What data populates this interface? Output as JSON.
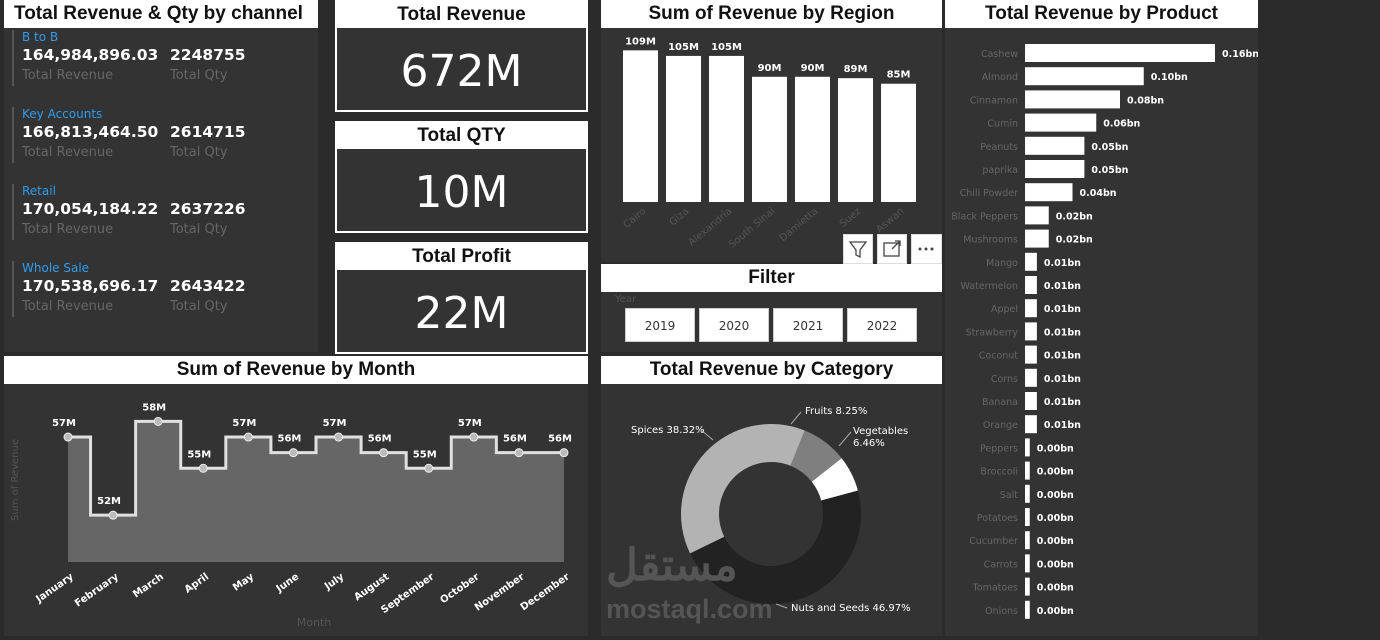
{
  "channel_panel": {
    "title": "Total Revenue & Qty by channel",
    "revenue_label": "Total Revenue",
    "qty_label": "Total Qty",
    "items": [
      {
        "name": "B to B",
        "revenue": "164,984,896.03",
        "qty": "2248755"
      },
      {
        "name": "Key Accounts",
        "revenue": "166,813,464.50",
        "qty": "2614715"
      },
      {
        "name": "Retail",
        "revenue": "170,054,184.22",
        "qty": "2637226"
      },
      {
        "name": "Whole Sale",
        "revenue": "170,538,696.17",
        "qty": "2643422"
      }
    ]
  },
  "cards": {
    "revenue": {
      "title": "Total Revenue",
      "value": "672M"
    },
    "qty": {
      "title": "Total QTY",
      "value": "10M"
    },
    "profit": {
      "title": "Total Profit",
      "value": "22M"
    }
  },
  "filter": {
    "title": "Filter",
    "field_label": "Year",
    "years": [
      "2019",
      "2020",
      "2021",
      "2022"
    ]
  },
  "watermark": {
    "arabic": "مستقل",
    "latin": "mostaql.com"
  },
  "chart_data": [
    {
      "type": "bar",
      "title": "Sum of Revenue by Region",
      "categories": [
        "Cairo",
        "Giza",
        "Alexandria",
        "South Sinai",
        "Damietta",
        "Suez",
        "Aswan"
      ],
      "values": [
        109,
        105,
        105,
        90,
        90,
        89,
        85
      ],
      "data_labels": [
        "109M",
        "105M",
        "105M",
        "90M",
        "90M",
        "89M",
        "85M"
      ],
      "ylim": [
        0,
        115
      ],
      "grid": false,
      "color": "#ffffff"
    },
    {
      "type": "area",
      "title": "Sum of Revenue by Month",
      "xlabel": "Month",
      "ylabel": "Sum of Revenue",
      "categories": [
        "January",
        "February",
        "March",
        "April",
        "May",
        "June",
        "July",
        "August",
        "September",
        "October",
        "November",
        "December"
      ],
      "values": [
        57,
        52,
        58,
        55,
        57,
        56,
        57,
        56,
        55,
        57,
        56,
        56
      ],
      "data_labels": [
        "57M",
        "52M",
        "58M",
        "55M",
        "57M",
        "56M",
        "57M",
        "56M",
        "55M",
        "57M",
        "56M",
        "56M"
      ],
      "ylim": [
        49,
        59.5
      ],
      "step": true,
      "grid": false,
      "line_color": "#e0e0e0",
      "fill_color": "#666666"
    },
    {
      "type": "pie",
      "title": "Total Revenue by Category",
      "donut": true,
      "labels": [
        "Fruits",
        "Vegetables",
        "Nuts and Seeds",
        "Spices"
      ],
      "values": [
        8.25,
        6.46,
        46.97,
        38.32
      ],
      "data_labels": [
        "Fruits 8.25%",
        "Vegetables 6.46%",
        "Nuts and Seeds 46.97%",
        "Spices 38.32%"
      ],
      "colors": [
        "#7f7f7f",
        "#ffffff",
        "#222222",
        "#b3b3b3"
      ]
    },
    {
      "type": "bar",
      "orientation": "horizontal",
      "title": "Total Revenue by Product",
      "categories": [
        "Cashew",
        "Almond",
        "Cinnamon",
        "Cumin",
        "Peanuts",
        "paprika",
        "Chili Powder",
        "Black Peppers",
        "Mushrooms",
        "Mango",
        "Watermelon",
        "Appel",
        "Strawberry",
        "Coconut",
        "Corns",
        "Banana",
        "Orange",
        "Peppers",
        "Broccoli",
        "Salt",
        "Potatoes",
        "Cucumber",
        "Carrots",
        "Tomatoes",
        "Onions"
      ],
      "values": [
        0.16,
        0.1,
        0.08,
        0.06,
        0.05,
        0.05,
        0.04,
        0.02,
        0.02,
        0.01,
        0.01,
        0.01,
        0.01,
        0.01,
        0.01,
        0.01,
        0.01,
        0.004,
        0.004,
        0.004,
        0.004,
        0.004,
        0.004,
        0.004,
        0.004
      ],
      "data_labels": [
        "0.16bn",
        "0.10bn",
        "0.08bn",
        "0.06bn",
        "0.05bn",
        "0.05bn",
        "0.04bn",
        "0.02bn",
        "0.02bn",
        "0.01bn",
        "0.01bn",
        "0.01bn",
        "0.01bn",
        "0.01bn",
        "0.01bn",
        "0.01bn",
        "0.01bn",
        "0.00bn",
        "0.00bn",
        "0.00bn",
        "0.00bn",
        "0.00bn",
        "0.00bn",
        "0.00bn",
        "0.00bn"
      ],
      "xlim": [
        0,
        0.16
      ],
      "grid": false,
      "color": "#ffffff"
    }
  ]
}
